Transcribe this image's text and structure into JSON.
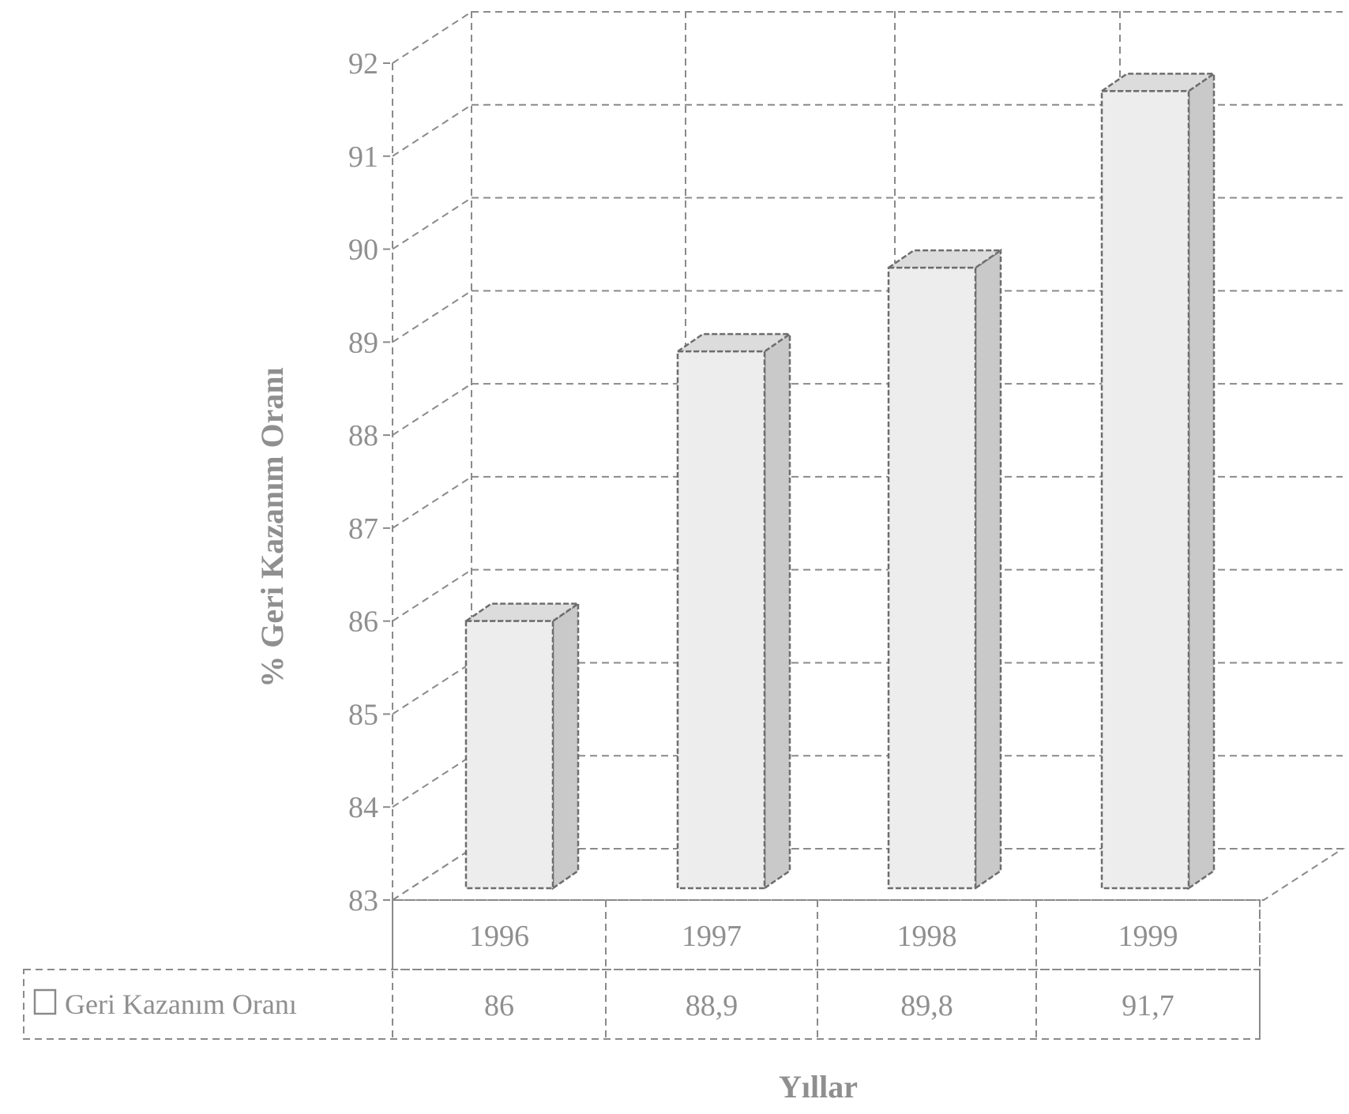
{
  "chart_data": {
    "type": "bar",
    "title": "",
    "xlabel": "Yıllar",
    "ylabel": "% Geri Kazanım Oranı",
    "ylim": [
      83,
      92
    ],
    "yticks": [
      "83",
      "84",
      "85",
      "86",
      "87",
      "88",
      "89",
      "90",
      "91",
      "92"
    ],
    "categories": [
      "1996",
      "1997",
      "1998",
      "1999"
    ],
    "series": [
      {
        "name": "Geri Kazanım Oranı",
        "values": [
          86,
          88.9,
          89.8,
          91.7
        ]
      }
    ],
    "value_labels": [
      "86",
      "88,9",
      "89,8",
      "91,7"
    ],
    "grid": true,
    "legend": "data table below chart"
  }
}
